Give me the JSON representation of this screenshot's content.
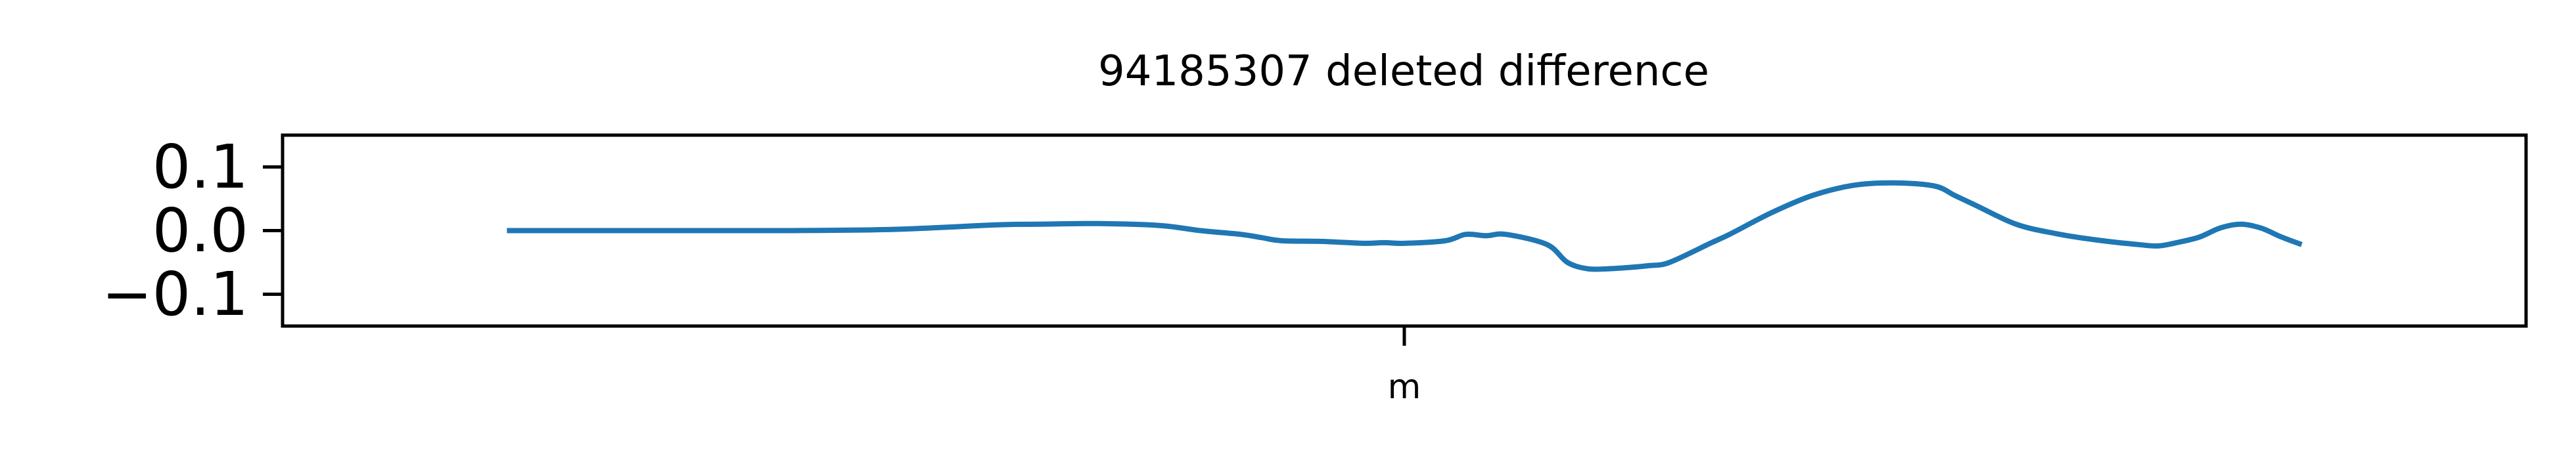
{
  "chart_data": {
    "type": "line",
    "title": "94185307 deleted difference",
    "xlabel": "",
    "ylabel": "",
    "x_ticks": [
      "m"
    ],
    "y_ticks": [
      "0.1",
      "0.0",
      "−0.1"
    ],
    "y_tick_values": [
      0.1,
      0.0,
      -0.1
    ],
    "ylim": [
      -0.15,
      0.15
    ],
    "xlim": [
      -0.05,
      1.05
    ],
    "grid": false,
    "legend": "none",
    "line_color": "#1f77b4",
    "series": [
      {
        "x": [
          0.06,
          0.1,
          0.15,
          0.2,
          0.25,
          0.3,
          0.32,
          0.35,
          0.38,
          0.4,
          0.42,
          0.43,
          0.44,
          0.46,
          0.48,
          0.49,
          0.5,
          0.52,
          0.53,
          0.54,
          0.55,
          0.57,
          0.58,
          0.59,
          0.6,
          0.61,
          0.62,
          0.63,
          0.65,
          0.66,
          0.68,
          0.7,
          0.72,
          0.74,
          0.76,
          0.77,
          0.78,
          0.8,
          0.82,
          0.84,
          0.86,
          0.87,
          0.88,
          0.89,
          0.9,
          0.91,
          0.92,
          0.93,
          0.94
        ],
        "y": [
          0.0,
          0.0,
          0.0,
          0.0,
          0.002,
          0.009,
          0.01,
          0.011,
          0.008,
          0.0,
          -0.006,
          -0.011,
          -0.016,
          -0.017,
          -0.02,
          -0.019,
          -0.02,
          -0.016,
          -0.006,
          -0.008,
          -0.006,
          -0.022,
          -0.05,
          -0.06,
          -0.06,
          -0.058,
          -0.055,
          -0.05,
          -0.02,
          -0.005,
          0.028,
          0.055,
          0.071,
          0.075,
          0.07,
          0.055,
          0.04,
          0.01,
          -0.005,
          -0.015,
          -0.022,
          -0.024,
          -0.018,
          -0.01,
          0.004,
          0.01,
          0.004,
          -0.01,
          -0.022
        ]
      }
    ]
  }
}
